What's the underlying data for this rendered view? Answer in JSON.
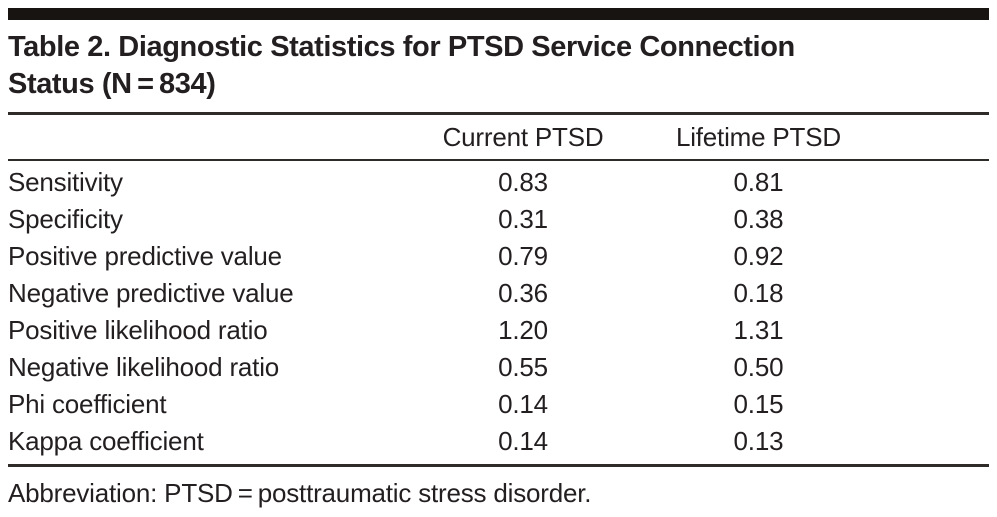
{
  "table": {
    "title_line1": "Table 2. Diagnostic Statistics for PTSD Service Connection",
    "title_line2": "Status (N = 834)",
    "columns": {
      "stat": "",
      "current": "Current PTSD",
      "lifetime": "Lifetime PTSD"
    },
    "rows": [
      {
        "label": "Sensitivity",
        "current": "0.83",
        "lifetime": "0.81"
      },
      {
        "label": "Specificity",
        "current": "0.31",
        "lifetime": "0.38"
      },
      {
        "label": "Positive predictive value",
        "current": "0.79",
        "lifetime": "0.92"
      },
      {
        "label": "Negative predictive value",
        "current": "0.36",
        "lifetime": "0.18"
      },
      {
        "label": "Positive likelihood ratio",
        "current": "1.20",
        "lifetime": "1.31"
      },
      {
        "label": "Negative likelihood ratio",
        "current": "0.55",
        "lifetime": "0.50"
      },
      {
        "label": "Phi coefficient",
        "current": "0.14",
        "lifetime": "0.15"
      },
      {
        "label": "Kappa coefficient",
        "current": "0.14",
        "lifetime": "0.13"
      }
    ],
    "footnote": "Abbreviation: PTSD = posttraumatic stress disorder."
  },
  "colors": {
    "text": "#231f20",
    "rule": "#2e2b28",
    "top_bar": "#171412",
    "background": "#ffffff"
  }
}
